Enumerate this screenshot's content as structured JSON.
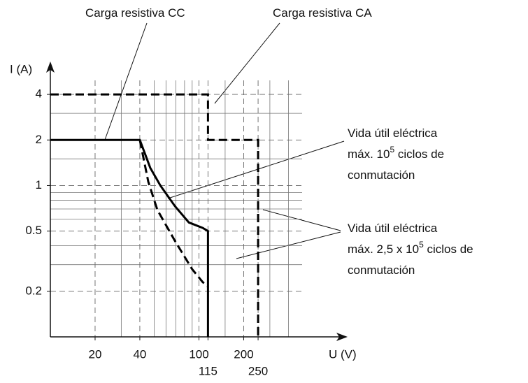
{
  "chart_data": {
    "type": "line",
    "x_label": "U (V)",
    "y_label": "I (A)",
    "log_x": true,
    "log_y": true,
    "xlim": [
      10,
      1000
    ],
    "ylim": [
      0.1,
      6.6
    ],
    "xticks": [
      20,
      40,
      100,
      115,
      200,
      250
    ],
    "yticks": [
      0.2,
      0.5,
      1,
      2,
      4
    ],
    "xgrid_minor": [
      30,
      50,
      60,
      70,
      80,
      90,
      150,
      300,
      400
    ],
    "ygrid_minor": [
      0.3,
      0.4,
      0.6,
      0.7,
      0.8,
      0.9,
      1.5,
      3
    ],
    "grid": true,
    "series": [
      {
        "name": "Carga resistiva CC",
        "color": "#000000",
        "dashed": false,
        "x": [
          10,
          40,
          47,
          55,
          69,
          85.5,
          106,
          115,
          115
        ],
        "values": [
          2,
          2,
          1.31,
          1.0,
          0.73,
          0.57,
          0.525,
          0.5,
          0.1
        ]
      },
      {
        "name": "Carga resistiva CA",
        "color": "#000000",
        "dashed": true,
        "x": [
          10,
          115,
          115,
          250,
          250
        ],
        "values": [
          4,
          4,
          2,
          2,
          0.1
        ]
      },
      {
        "name": "Vida útil eléctrica 2,5 x 10^5",
        "color": "#000000",
        "dashed": true,
        "x": [
          40,
          45.6,
          52.5,
          69,
          90,
          106,
          115
        ],
        "values": [
          2,
          1.06,
          0.69,
          0.43,
          0.28,
          0.23,
          0.215
        ]
      }
    ],
    "annotations": [
      {
        "lines": [
          [
            "Carga resistiva CC"
          ]
        ]
      },
      {
        "lines": [
          [
            "Carga resistiva CA"
          ]
        ]
      },
      {
        "lines": [
          [
            "Vida útil eléctrica"
          ],
          [
            "máx. 10",
            "5",
            " ciclos de"
          ],
          [
            "conmutación"
          ]
        ]
      },
      {
        "lines": [
          [
            "Vida útil eléctrica"
          ],
          [
            "máx. 2,5 x 10",
            "5",
            " ciclos de"
          ],
          [
            "conmutación"
          ]
        ]
      }
    ]
  }
}
